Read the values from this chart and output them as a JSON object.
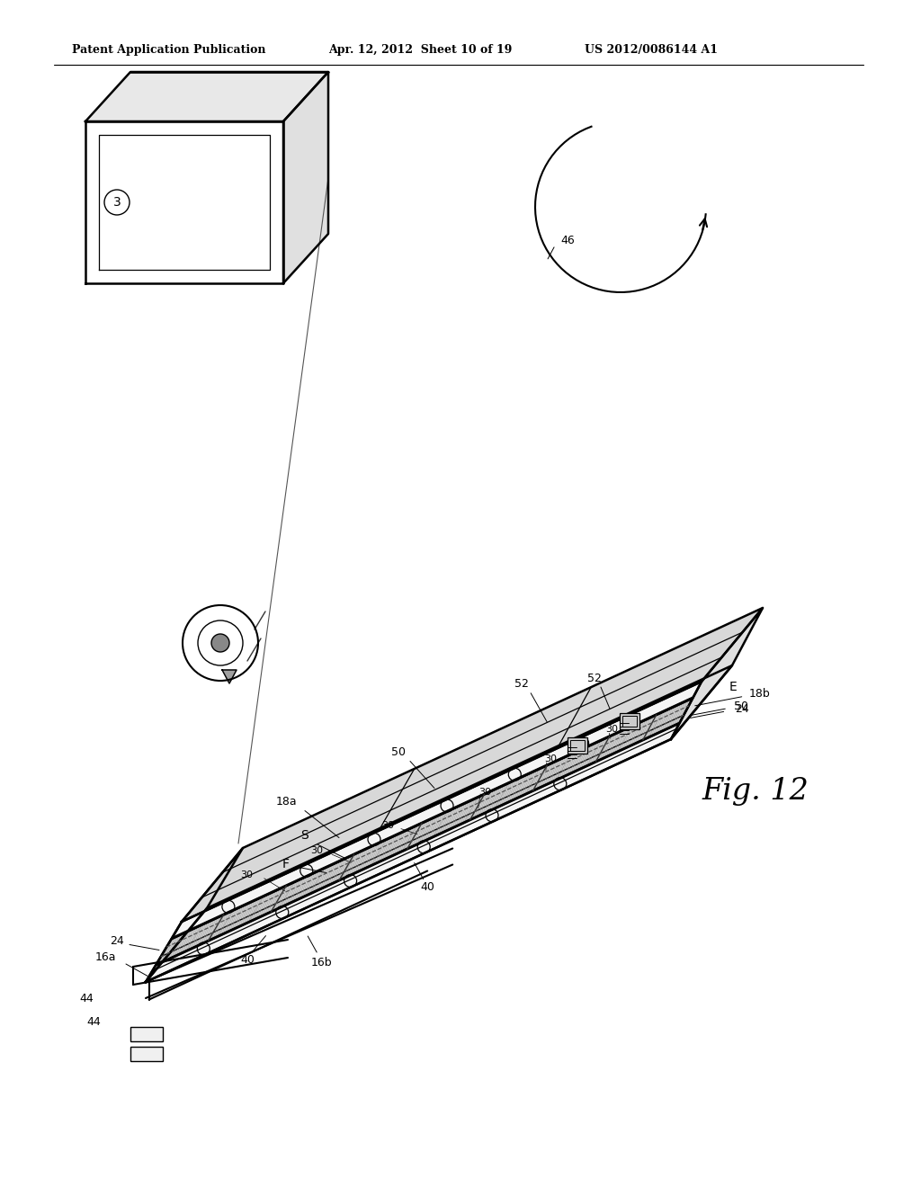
{
  "title_left": "Patent Application Publication",
  "title_mid": "Apr. 12, 2012  Sheet 10 of 19",
  "title_right": "US 2012/0086144 A1",
  "fig_label": "Fig. 12",
  "background_color": "#ffffff",
  "line_color": "#000000",
  "lw_main": 1.8,
  "lw_thin": 0.9,
  "lw_detail": 0.7
}
